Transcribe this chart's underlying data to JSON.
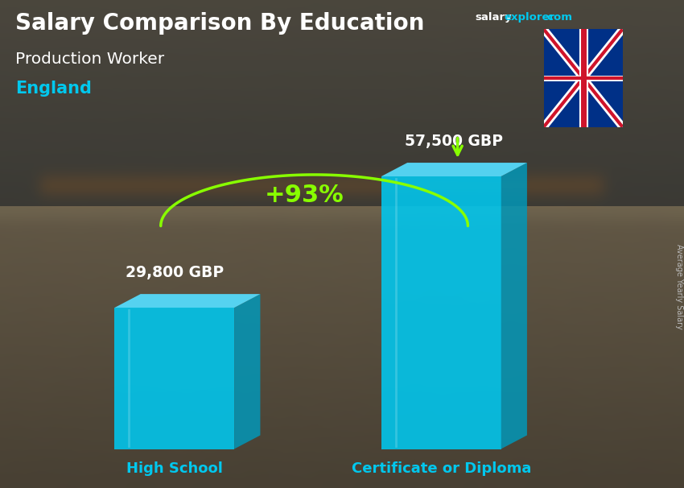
{
  "title_main": "Salary Comparison By Education",
  "subtitle_job": "Production Worker",
  "subtitle_location": "England",
  "categories": [
    "High School",
    "Certificate or Diploma"
  ],
  "values": [
    29800,
    57500
  ],
  "labels": [
    "29,800 GBP",
    "57,500 GBP"
  ],
  "pct_change": "+93%",
  "bar_face_color": "#00C8F0",
  "bar_side_color": "#0099BB",
  "bar_top_color": "#55DDFF",
  "bar_alpha": 0.88,
  "text_white": "#FFFFFF",
  "text_cyan": "#00C8EE",
  "text_green": "#88FF00",
  "text_gray": "#BBBBBB",
  "arrow_color": "#88FF00",
  "site_white": "#FFFFFF",
  "site_cyan": "#00C8EE",
  "ylabel": "Average Yearly Salary",
  "ylim_max": 70000,
  "fig_width": 8.5,
  "fig_height": 6.06
}
